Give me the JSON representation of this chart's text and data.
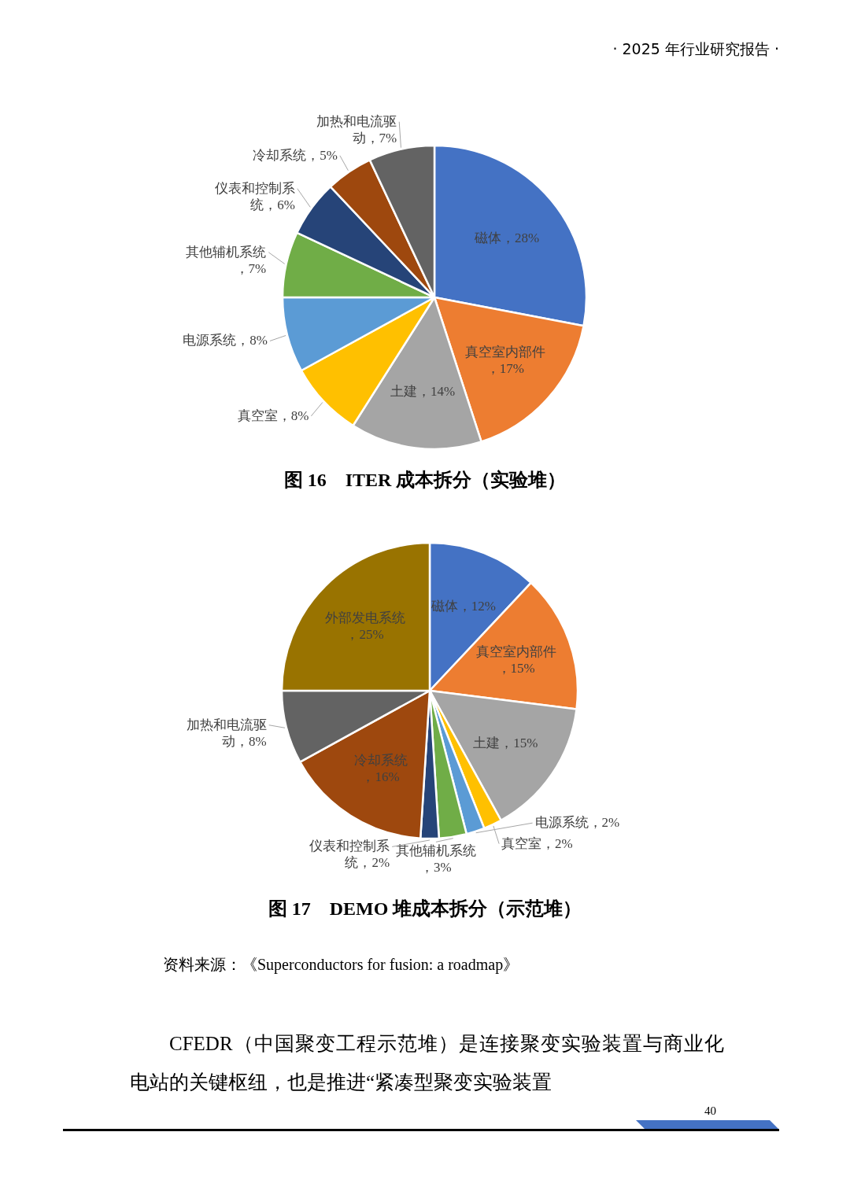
{
  "chart_data": [
    {
      "type": "pie",
      "title": "图 16　ITER 成本拆分（实验堆）",
      "categories": [
        "磁体",
        "真空室内部件",
        "土建",
        "真空室",
        "电源系统",
        "其他辅机系统",
        "仪表和控制系统",
        "冷却系统",
        "加热和电流驱动"
      ],
      "values": [
        28,
        17,
        14,
        8,
        8,
        7,
        6,
        5,
        7
      ],
      "value_labels": [
        "，28%",
        "，17%",
        "，14%",
        "，8%",
        "，8%",
        "，7%",
        "，6%",
        "，5%",
        "，7%"
      ],
      "colors": [
        "#4472c4",
        "#ed7d31",
        "#a5a5a5",
        "#ffc000",
        "#5b9bd5",
        "#70ad47",
        "#264478",
        "#9e480e",
        "#636363"
      ],
      "annotations": [
        "· 2025 年行业研究报告 ·"
      ]
    },
    {
      "type": "pie",
      "title": "图 17　DEMO 堆成本拆分（示范堆）",
      "categories": [
        "磁体",
        "真空室内部件",
        "土建",
        "真空室",
        "电源系统",
        "其他辅机系统",
        "仪表和控制系统",
        "冷却系统",
        "加热和电流驱动",
        "外部发电系统"
      ],
      "values": [
        12,
        15,
        15,
        2,
        2,
        3,
        2,
        16,
        8,
        25
      ],
      "value_labels": [
        "，12%",
        "，15%",
        "，15%",
        "，2%",
        "，2%",
        "，3%",
        "，2%",
        "，16%",
        "，8%",
        "，25%"
      ],
      "colors": [
        "#4472c4",
        "#ed7d31",
        "#a5a5a5",
        "#ffc000",
        "#5b9bd5",
        "#70ad47",
        "#264478",
        "#9e480e",
        "#636363",
        "#997300"
      ],
      "annotations": [
        "资料来源：《Superconductors for fusion: a roadmap》",
        "CFEDR（中国聚变工程示范堆）是连接聚变实验装置与商业化电站的关键枢纽，也是推进“紧凑型聚变实验装置",
        "40"
      ]
    }
  ]
}
